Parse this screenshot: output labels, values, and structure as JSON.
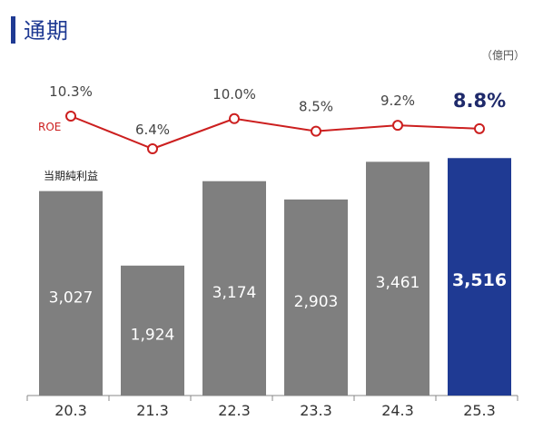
{
  "header": {
    "title": "通期",
    "unit": "（億円）"
  },
  "chart_data": {
    "type": "bar+line",
    "categories": [
      "20.3",
      "21.3",
      "22.3",
      "23.3",
      "24.3",
      "25.3"
    ],
    "bar_series": {
      "name": "当期純利益",
      "values": [
        3027,
        1924,
        3174,
        2903,
        3461,
        3516
      ],
      "labels": [
        "3,027",
        "1,924",
        "3,174",
        "2,903",
        "3,461",
        "3,516"
      ],
      "color": "#7f7f7f",
      "highlight_color": "#1f3a93",
      "highlight_index": 5
    },
    "line_series": {
      "name": "ROE",
      "values": [
        10.3,
        6.4,
        10.0,
        8.5,
        9.2,
        8.8
      ],
      "labels": [
        "10.3%",
        "6.4%",
        "10.0%",
        "8.5%",
        "9.2%",
        "8.8%"
      ],
      "color": "#cc1f1f",
      "highlight_color": "#1f2a6b"
    },
    "ylim": [
      0,
      3600
    ],
    "roe_ylim": [
      6.4,
      10.3
    ]
  }
}
